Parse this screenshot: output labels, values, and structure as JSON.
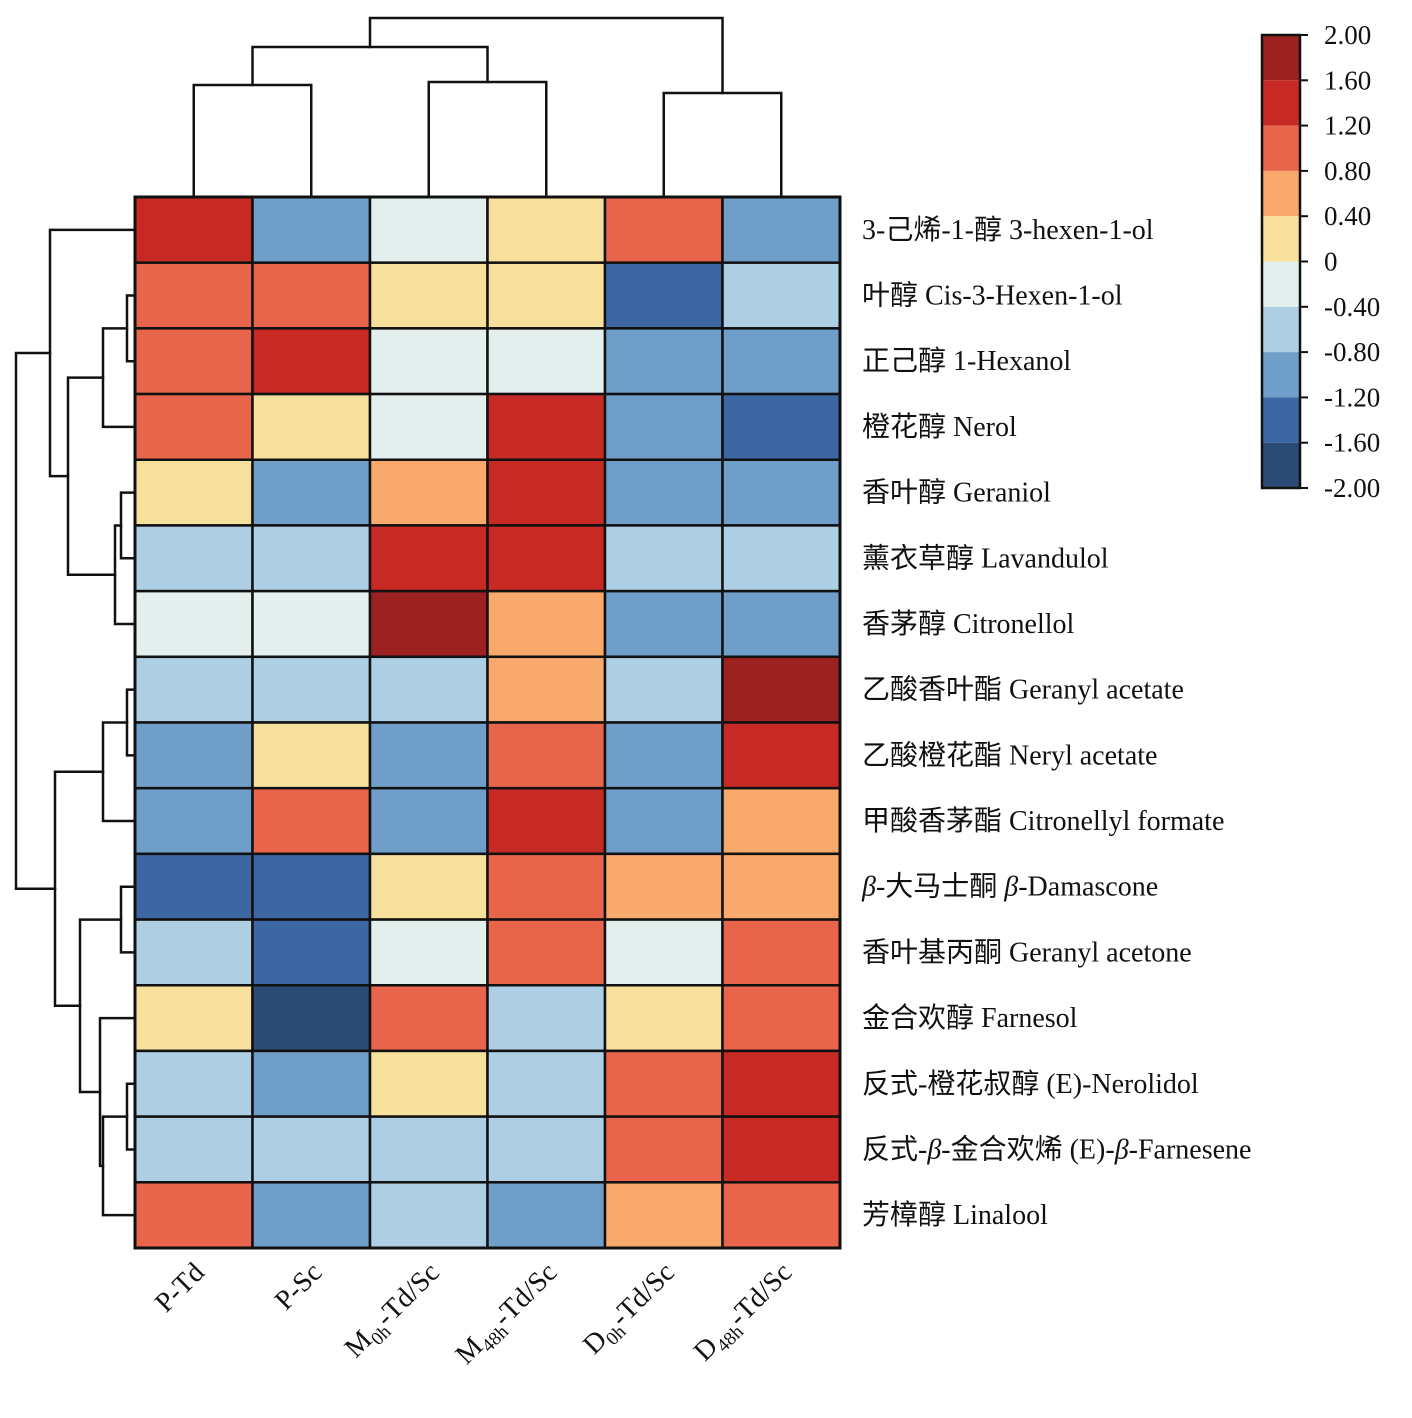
{
  "chart_data": {
    "type": "heatmap",
    "x_labels": [
      {
        "text": "P-Td"
      },
      {
        "text": "P-Sc"
      },
      {
        "text": "M",
        "sub": "0h",
        "rest": "-Td/Sc"
      },
      {
        "text": "M",
        "sub": "48h",
        "rest": "-Td/Sc"
      },
      {
        "text": "D",
        "sub": "0h",
        "rest": "-Td/Sc"
      },
      {
        "text": "D",
        "sub": "48h",
        "rest": "-Td/Sc"
      }
    ],
    "y_labels": [
      "3-己烯-1-醇 3-hexen-1-ol",
      "叶醇 Cis-3-Hexen-1-ol",
      "正己醇 1-Hexanol",
      "橙花醇 Nerol",
      "香叶醇 Geraniol",
      "薰衣草醇 Lavandulol",
      "香茅醇 Citronellol",
      "乙酸香叶酯 Geranyl acetate",
      "乙酸橙花酯 Neryl acetate",
      "甲酸香茅酯 Citronellyl formate",
      "β-大马士酮 β-Damascone",
      "香叶基丙酮 Geranyl acetone",
      "金合欢醇 Farnesol",
      "反式-橙花叔醇 (E)-Nerolidol",
      "反式-β-金合欢烯 (E)-β-Farnesene",
      "芳樟醇 Linalool"
    ],
    "values": [
      [
        1.4,
        -1.0,
        -0.2,
        0.2,
        1.0,
        -1.0
      ],
      [
        1.0,
        1.0,
        0.2,
        0.2,
        -1.4,
        -0.6
      ],
      [
        1.0,
        1.4,
        -0.2,
        -0.2,
        -1.0,
        -1.0
      ],
      [
        1.0,
        0.2,
        -0.2,
        1.4,
        -1.0,
        -1.4
      ],
      [
        0.2,
        -1.0,
        0.6,
        1.4,
        -1.0,
        -1.0
      ],
      [
        -0.6,
        -0.6,
        1.4,
        1.4,
        -0.6,
        -0.6
      ],
      [
        -0.2,
        -0.2,
        1.8,
        0.6,
        -1.0,
        -1.0
      ],
      [
        -0.6,
        -0.6,
        -0.6,
        0.6,
        -0.6,
        1.8
      ],
      [
        -1.0,
        0.2,
        -1.0,
        1.0,
        -1.0,
        1.4
      ],
      [
        -1.0,
        1.0,
        -1.0,
        1.4,
        -1.0,
        0.6
      ],
      [
        -1.4,
        -1.4,
        0.2,
        1.0,
        0.6,
        0.6
      ],
      [
        -0.6,
        -1.4,
        -0.2,
        1.0,
        -0.2,
        1.0
      ],
      [
        0.2,
        -1.8,
        1.0,
        -0.6,
        0.2,
        1.0
      ],
      [
        -0.6,
        -1.0,
        0.2,
        -0.6,
        1.0,
        1.4
      ],
      [
        -0.6,
        -0.6,
        -0.6,
        -0.6,
        1.0,
        1.4
      ],
      [
        1.0,
        -1.0,
        -0.6,
        -1.0,
        0.6,
        1.0
      ]
    ],
    "colorbar": {
      "range": [
        -2,
        2
      ],
      "ticks": [
        "2.00",
        "1.60",
        "1.20",
        "0.80",
        "0.40",
        "0",
        "-0.40",
        "-0.80",
        "-1.20",
        "-1.60",
        "-2.00"
      ],
      "colors_low_to_high": [
        "#2c4b74",
        "#3d67a3",
        "#6f9ec9",
        "#aecfe3",
        "#e2efec",
        "#f7df9c",
        "#f8a96b",
        "#e8644a",
        "#c72a25",
        "#9b2220"
      ]
    }
  }
}
